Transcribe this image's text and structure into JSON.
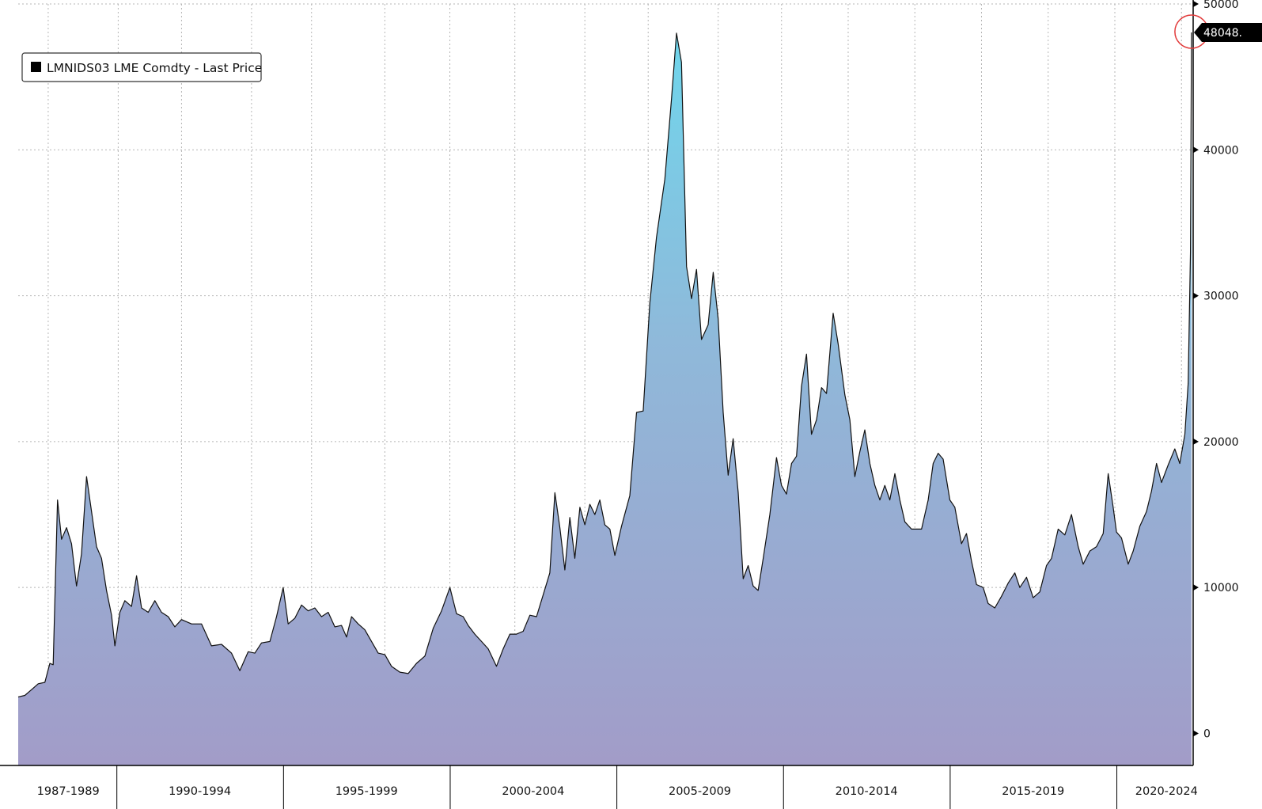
{
  "chart_data": {
    "type": "area",
    "title": "",
    "legend": {
      "label": "LMNIDS03 LME Comdty - Last Price",
      "placement": "top-left",
      "swatch_color": "#000000"
    },
    "x_categories": [
      "1987-1989",
      "1990-1994",
      "1995-1999",
      "2000-2004",
      "2005-2009",
      "2010-2014",
      "2015-2019",
      "2020-2024"
    ],
    "x_range": [
      1987.0,
      2022.25
    ],
    "y_axis": {
      "position": "right",
      "ticks": [
        "0",
        "10000",
        "20000",
        "30000",
        "40000",
        "50000"
      ],
      "ylim": [
        -2200,
        50000
      ]
    },
    "grid": true,
    "last_price": {
      "label": "48048.",
      "value": 48048,
      "highlight_circle_color": "#e23b3b"
    },
    "colors": {
      "line": "#111111",
      "fill_top": "#6fd6ec",
      "fill_mid": "#8fb9da",
      "fill_bottom": "#a29cc8",
      "grid": "#b5b5b5",
      "axis": "#000000",
      "badge_bg": "#000000"
    },
    "series": [
      {
        "name": "LMNIDS03 LME Comdty - Last Price",
        "points": [
          [
            1987.0,
            2500
          ],
          [
            1987.2,
            2600
          ],
          [
            1987.4,
            3000
          ],
          [
            1987.6,
            3400
          ],
          [
            1987.8,
            3500
          ],
          [
            1987.95,
            4800
          ],
          [
            1988.05,
            4700
          ],
          [
            1988.18,
            16000
          ],
          [
            1988.3,
            13300
          ],
          [
            1988.45,
            14100
          ],
          [
            1988.6,
            13000
          ],
          [
            1988.75,
            10100
          ],
          [
            1988.9,
            12300
          ],
          [
            1989.05,
            17600
          ],
          [
            1989.2,
            15200
          ],
          [
            1989.35,
            12800
          ],
          [
            1989.5,
            12000
          ],
          [
            1989.65,
            9800
          ],
          [
            1989.8,
            8100
          ],
          [
            1989.9,
            6000
          ],
          [
            1990.05,
            8300
          ],
          [
            1990.2,
            9100
          ],
          [
            1990.4,
            8700
          ],
          [
            1990.55,
            10800
          ],
          [
            1990.7,
            8600
          ],
          [
            1990.9,
            8300
          ],
          [
            1991.1,
            9100
          ],
          [
            1991.3,
            8300
          ],
          [
            1991.5,
            8000
          ],
          [
            1991.7,
            7300
          ],
          [
            1991.9,
            7800
          ],
          [
            1992.2,
            7500
          ],
          [
            1992.5,
            7500
          ],
          [
            1992.8,
            6000
          ],
          [
            1993.1,
            6100
          ],
          [
            1993.4,
            5500
          ],
          [
            1993.65,
            4300
          ],
          [
            1993.9,
            5600
          ],
          [
            1994.1,
            5500
          ],
          [
            1994.3,
            6200
          ],
          [
            1994.55,
            6300
          ],
          [
            1994.75,
            8000
          ],
          [
            1994.95,
            10000
          ],
          [
            1995.1,
            7500
          ],
          [
            1995.3,
            7900
          ],
          [
            1995.5,
            8800
          ],
          [
            1995.7,
            8400
          ],
          [
            1995.9,
            8600
          ],
          [
            1996.1,
            8000
          ],
          [
            1996.3,
            8300
          ],
          [
            1996.5,
            7300
          ],
          [
            1996.7,
            7400
          ],
          [
            1996.85,
            6600
          ],
          [
            1997.0,
            8000
          ],
          [
            1997.2,
            7500
          ],
          [
            1997.4,
            7100
          ],
          [
            1997.6,
            6300
          ],
          [
            1997.8,
            5500
          ],
          [
            1998.0,
            5400
          ],
          [
            1998.2,
            4600
          ],
          [
            1998.45,
            4200
          ],
          [
            1998.7,
            4100
          ],
          [
            1998.95,
            4800
          ],
          [
            1999.2,
            5300
          ],
          [
            1999.45,
            7200
          ],
          [
            1999.7,
            8400
          ],
          [
            1999.95,
            10000
          ],
          [
            2000.15,
            8200
          ],
          [
            2000.35,
            8000
          ],
          [
            2000.5,
            7400
          ],
          [
            2000.7,
            6800
          ],
          [
            2000.9,
            6300
          ],
          [
            2001.1,
            5800
          ],
          [
            2001.35,
            4600
          ],
          [
            2001.55,
            5800
          ],
          [
            2001.75,
            6800
          ],
          [
            2001.95,
            6800
          ],
          [
            2002.15,
            7000
          ],
          [
            2002.35,
            8100
          ],
          [
            2002.55,
            8000
          ],
          [
            2002.75,
            9500
          ],
          [
            2002.95,
            11000
          ],
          [
            2003.1,
            16500
          ],
          [
            2003.25,
            14100
          ],
          [
            2003.4,
            11200
          ],
          [
            2003.55,
            14800
          ],
          [
            2003.7,
            12000
          ],
          [
            2003.85,
            15500
          ],
          [
            2004.0,
            14300
          ],
          [
            2004.15,
            15700
          ],
          [
            2004.3,
            15000
          ],
          [
            2004.45,
            16000
          ],
          [
            2004.6,
            14300
          ],
          [
            2004.75,
            14000
          ],
          [
            2004.9,
            12200
          ],
          [
            2005.1,
            14200
          ],
          [
            2005.35,
            16300
          ],
          [
            2005.55,
            22000
          ],
          [
            2005.75,
            22100
          ],
          [
            2005.95,
            29500
          ],
          [
            2006.15,
            34000
          ],
          [
            2006.4,
            38000
          ],
          [
            2006.6,
            43500
          ],
          [
            2006.75,
            48000
          ],
          [
            2006.9,
            46000
          ],
          [
            2007.05,
            32000
          ],
          [
            2007.2,
            29800
          ],
          [
            2007.35,
            31800
          ],
          [
            2007.5,
            27000
          ],
          [
            2007.7,
            28000
          ],
          [
            2007.85,
            31600
          ],
          [
            2008.0,
            28400
          ],
          [
            2008.15,
            22000
          ],
          [
            2008.3,
            17700
          ],
          [
            2008.45,
            20200
          ],
          [
            2008.6,
            16500
          ],
          [
            2008.75,
            10600
          ],
          [
            2008.9,
            11500
          ],
          [
            2009.05,
            10100
          ],
          [
            2009.2,
            9800
          ],
          [
            2009.35,
            12000
          ],
          [
            2009.55,
            15000
          ],
          [
            2009.75,
            18900
          ],
          [
            2009.9,
            17000
          ],
          [
            2010.05,
            16400
          ],
          [
            2010.2,
            18500
          ],
          [
            2010.35,
            19000
          ],
          [
            2010.5,
            23800
          ],
          [
            2010.65,
            26000
          ],
          [
            2010.8,
            20500
          ],
          [
            2010.95,
            21500
          ],
          [
            2011.1,
            23700
          ],
          [
            2011.25,
            23300
          ],
          [
            2011.45,
            28800
          ],
          [
            2011.6,
            26700
          ],
          [
            2011.8,
            23200
          ],
          [
            2011.95,
            21500
          ],
          [
            2012.1,
            17600
          ],
          [
            2012.25,
            19300
          ],
          [
            2012.4,
            20800
          ],
          [
            2012.55,
            18500
          ],
          [
            2012.7,
            17000
          ],
          [
            2012.85,
            16000
          ],
          [
            2013.0,
            17000
          ],
          [
            2013.15,
            16000
          ],
          [
            2013.3,
            17800
          ],
          [
            2013.45,
            16000
          ],
          [
            2013.6,
            14500
          ],
          [
            2013.8,
            14000
          ],
          [
            2013.95,
            14000
          ],
          [
            2014.1,
            14000
          ],
          [
            2014.3,
            16000
          ],
          [
            2014.45,
            18500
          ],
          [
            2014.6,
            19200
          ],
          [
            2014.75,
            18800
          ],
          [
            2014.95,
            16000
          ],
          [
            2015.1,
            15500
          ],
          [
            2015.3,
            13000
          ],
          [
            2015.45,
            13700
          ],
          [
            2015.6,
            11800
          ],
          [
            2015.75,
            10200
          ],
          [
            2015.95,
            10000
          ],
          [
            2016.1,
            8900
          ],
          [
            2016.3,
            8600
          ],
          [
            2016.5,
            9400
          ],
          [
            2016.7,
            10300
          ],
          [
            2016.9,
            11000
          ],
          [
            2017.05,
            10000
          ],
          [
            2017.25,
            10700
          ],
          [
            2017.45,
            9300
          ],
          [
            2017.65,
            9700
          ],
          [
            2017.85,
            11500
          ],
          [
            2018.0,
            12000
          ],
          [
            2018.2,
            14000
          ],
          [
            2018.4,
            13600
          ],
          [
            2018.6,
            15000
          ],
          [
            2018.8,
            12800
          ],
          [
            2018.95,
            11600
          ],
          [
            2019.15,
            12500
          ],
          [
            2019.35,
            12800
          ],
          [
            2019.55,
            13700
          ],
          [
            2019.7,
            17800
          ],
          [
            2019.85,
            15500
          ],
          [
            2019.95,
            13800
          ],
          [
            2020.1,
            13400
          ],
          [
            2020.3,
            11600
          ],
          [
            2020.45,
            12500
          ],
          [
            2020.65,
            14200
          ],
          [
            2020.85,
            15200
          ],
          [
            2021.0,
            16600
          ],
          [
            2021.15,
            18500
          ],
          [
            2021.3,
            17200
          ],
          [
            2021.5,
            18400
          ],
          [
            2021.7,
            19500
          ],
          [
            2021.85,
            18500
          ],
          [
            2022.0,
            20500
          ],
          [
            2022.1,
            24000
          ],
          [
            2022.17,
            33000
          ],
          [
            2022.2,
            48048
          ]
        ]
      }
    ]
  }
}
